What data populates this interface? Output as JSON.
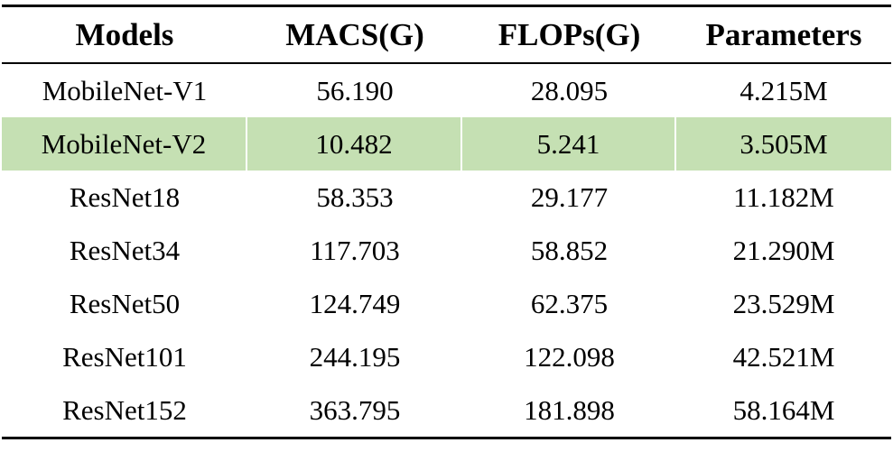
{
  "table": {
    "headers": [
      "Models",
      "MACS(G)",
      "FLOPs(G)",
      "Parameters"
    ],
    "highlight_color": "#c5e0b3",
    "highlighted_row": "MobileNet-V2",
    "rows": [
      [
        "MobileNet-V1",
        "56.190",
        "28.095",
        "4.215M"
      ],
      [
        "MobileNet-V2",
        "10.482",
        "5.241",
        "3.505M"
      ],
      [
        "ResNet18",
        "58.353",
        "29.177",
        "11.182M"
      ],
      [
        "ResNet34",
        "117.703",
        "58.852",
        "21.290M"
      ],
      [
        "ResNet50",
        "124.749",
        "62.375",
        "23.529M"
      ],
      [
        "ResNet101",
        "244.195",
        "122.098",
        "42.521M"
      ],
      [
        "ResNet152",
        "363.795",
        "181.898",
        "58.164M"
      ]
    ]
  }
}
